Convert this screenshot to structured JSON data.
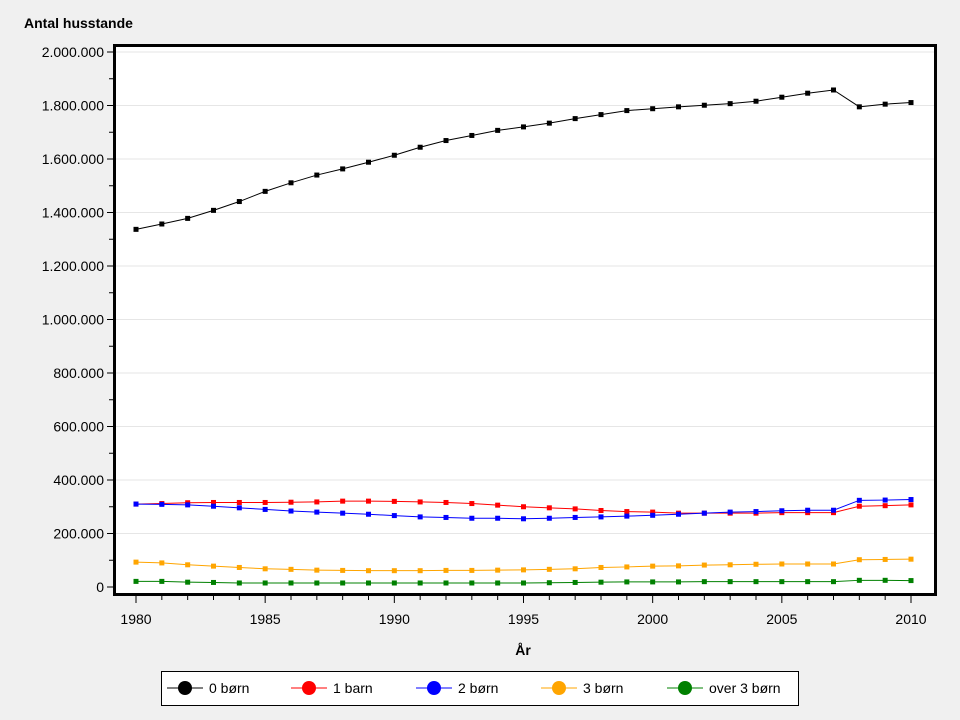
{
  "chart_data": {
    "type": "line",
    "ylabel": "Antal husstande",
    "xlabel": "År",
    "xlim": [
      1980,
      2010
    ],
    "ylim": [
      0,
      2000000
    ],
    "xticks": [
      "1980",
      "1985",
      "1990",
      "1995",
      "2000",
      "2005",
      "2010"
    ],
    "yticks": [
      "0",
      "200.000",
      "400.000",
      "600.000",
      "800.000",
      "1.000.000",
      "1.200.000",
      "1.400.000",
      "1.600.000",
      "1.800.000",
      "2.000.000"
    ],
    "grid": "horizontal",
    "legend_position": "bottom",
    "x": [
      1980,
      1981,
      1982,
      1983,
      1984,
      1985,
      1986,
      1987,
      1988,
      1989,
      1990,
      1991,
      1992,
      1993,
      1994,
      1995,
      1996,
      1997,
      1998,
      1999,
      2000,
      2001,
      2002,
      2003,
      2004,
      2005,
      2006,
      2007,
      2008,
      2009,
      2010
    ],
    "series": [
      {
        "name": "0 børn",
        "color": "#000000",
        "values": [
          1337000,
          1357000,
          1378000,
          1408000,
          1441000,
          1479000,
          1511000,
          1540000,
          1563000,
          1588000,
          1614000,
          1644000,
          1669000,
          1688000,
          1707000,
          1720000,
          1734000,
          1751000,
          1766000,
          1781000,
          1788000,
          1795000,
          1801000,
          1807000,
          1816000,
          1831000,
          1846000,
          1858000,
          1795000,
          1805000,
          1811000
        ]
      },
      {
        "name": "1 barn",
        "color": "#ff0000",
        "values": [
          310000,
          312000,
          315000,
          316000,
          316000,
          316000,
          317000,
          318000,
          321000,
          321000,
          320000,
          318000,
          316000,
          312000,
          306000,
          300000,
          296000,
          292000,
          286000,
          282000,
          280000,
          276000,
          276000,
          276000,
          276000,
          278000,
          278000,
          278000,
          302000,
          304000,
          307000
        ]
      },
      {
        "name": "2 børn",
        "color": "#0000ff",
        "values": [
          310000,
          309000,
          307000,
          302000,
          296000,
          290000,
          284000,
          280000,
          276000,
          272000,
          267000,
          262000,
          260000,
          257000,
          257000,
          255000,
          257000,
          260000,
          262000,
          265000,
          268000,
          272000,
          276000,
          280000,
          282000,
          285000,
          287000,
          287000,
          324000,
          325000,
          327000
        ]
      },
      {
        "name": "3 børn",
        "color": "#ffa500",
        "values": [
          93000,
          90000,
          83000,
          78000,
          73000,
          68000,
          66000,
          63000,
          62000,
          61000,
          61000,
          61000,
          62000,
          62000,
          63000,
          64000,
          66000,
          68000,
          73000,
          75000,
          78000,
          79000,
          82000,
          83000,
          85000,
          86000,
          86000,
          86000,
          102000,
          103000,
          104000
        ]
      },
      {
        "name": "over 3 børn",
        "color": "#008000",
        "values": [
          21000,
          21000,
          18000,
          17000,
          15000,
          15000,
          15000,
          15000,
          15000,
          15000,
          15000,
          15000,
          15000,
          15000,
          15000,
          15000,
          16000,
          17000,
          18000,
          19000,
          19000,
          19000,
          20000,
          20000,
          20000,
          20000,
          20000,
          20000,
          25000,
          25000,
          24000
        ]
      }
    ]
  }
}
